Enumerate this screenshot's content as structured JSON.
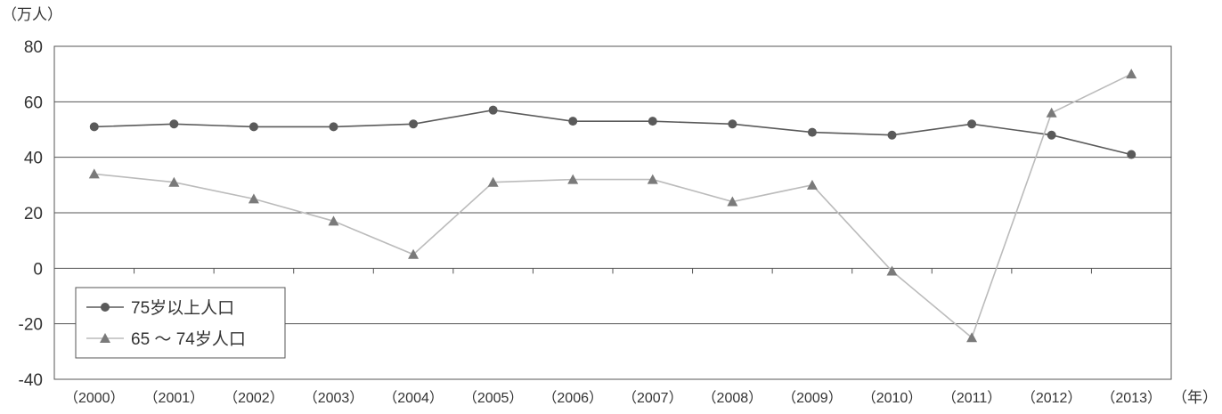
{
  "chart_data": {
    "type": "line",
    "title": "",
    "xlabel": "（年）",
    "ylabel": "（万人）",
    "ylim": [
      -40,
      80
    ],
    "yticks": [
      80,
      60,
      40,
      20,
      0,
      -20,
      -40
    ],
    "ytick_labels": [
      "80",
      "60",
      "40",
      "20",
      "0",
      "-20",
      "-40"
    ],
    "categories": [
      "（2000）",
      "（2001）",
      "（2002）",
      "（2003）",
      "（2004）",
      "（2005）",
      "（2006）",
      "（2007）",
      "（2008）",
      "（2009）",
      "（2010）",
      "（2011）",
      "（2012）",
      "（2013）"
    ],
    "grid": true,
    "legend_position": "bottom-left",
    "series": [
      {
        "name": "75岁以上人口",
        "marker": "circle",
        "color": "#5a5a5a",
        "values": [
          51,
          52,
          51,
          51,
          52,
          57,
          53,
          53,
          52,
          49,
          48,
          52,
          48,
          41
        ]
      },
      {
        "name": "65 ～ 74岁人口",
        "marker": "triangle",
        "color": "#bbbbbb",
        "marker_color": "#7a7a7a",
        "values": [
          34,
          31,
          25,
          17,
          5,
          31,
          32,
          32,
          24,
          30,
          -1,
          -25,
          56,
          70
        ]
      }
    ]
  }
}
